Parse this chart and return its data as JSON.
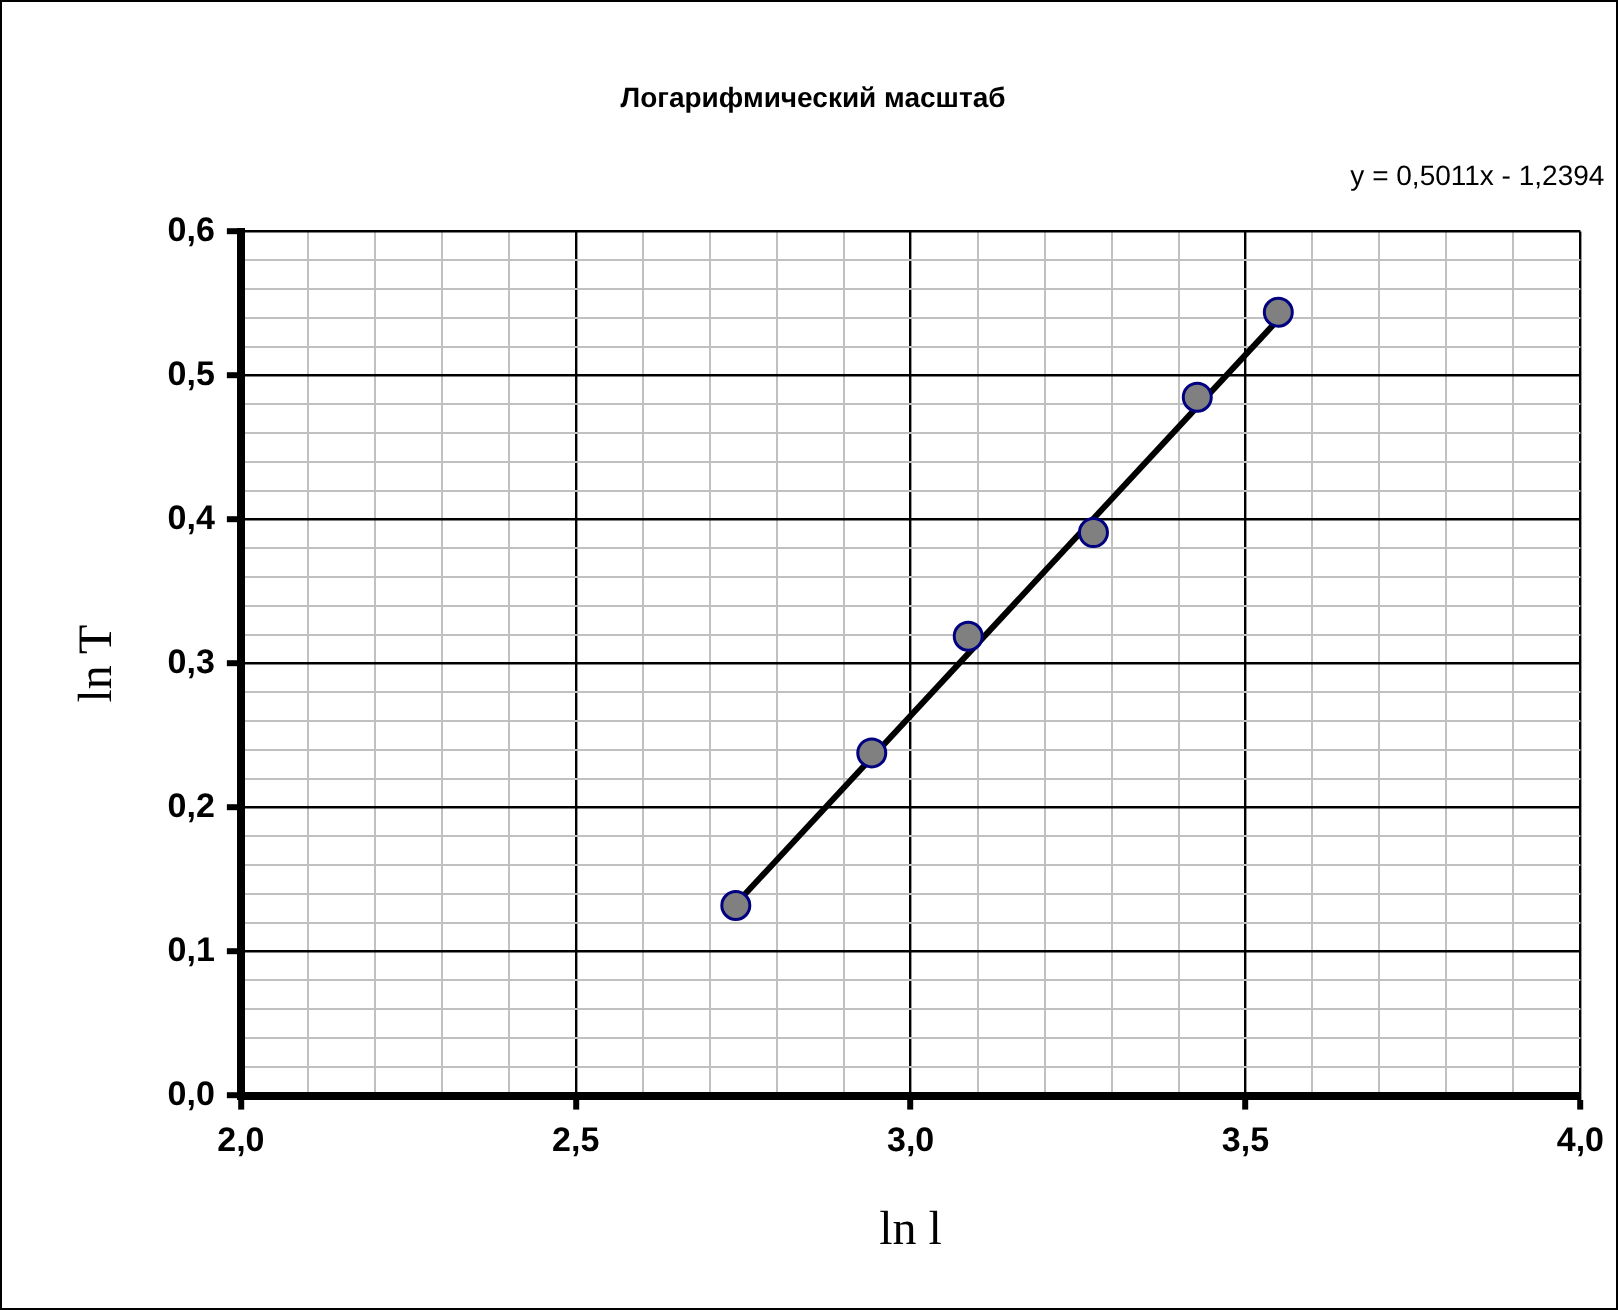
{
  "chart_data": {
    "type": "scatter",
    "title": "Логарифмический масштаб",
    "xlabel": "ln l",
    "ylabel": "ln T",
    "annotations": [
      "y = 0,5011x - 1,2394"
    ],
    "xlim": [
      2.0,
      4.0
    ],
    "ylim": [
      0.0,
      0.6
    ],
    "xticks": [
      {
        "value": 2.0,
        "label": "2,0"
      },
      {
        "value": 2.1,
        "label": null
      },
      {
        "value": 2.2,
        "label": null
      },
      {
        "value": 2.3,
        "label": null
      },
      {
        "value": 2.4,
        "label": null
      },
      {
        "value": 2.5,
        "label": "2,5"
      },
      {
        "value": 2.6,
        "label": null
      },
      {
        "value": 2.7,
        "label": null
      },
      {
        "value": 2.8,
        "label": null
      },
      {
        "value": 2.9,
        "label": null
      },
      {
        "value": 3.0,
        "label": "3,0"
      },
      {
        "value": 3.1,
        "label": null
      },
      {
        "value": 3.2,
        "label": null
      },
      {
        "value": 3.3,
        "label": null
      },
      {
        "value": 3.4,
        "label": null
      },
      {
        "value": 3.5,
        "label": "3,5"
      },
      {
        "value": 3.6,
        "label": null
      },
      {
        "value": 3.7,
        "label": null
      },
      {
        "value": 3.8,
        "label": null
      },
      {
        "value": 3.9,
        "label": null
      },
      {
        "value": 4.0,
        "label": "4,0"
      }
    ],
    "yticks": [
      {
        "value": 0.0,
        "label": "0,0"
      },
      {
        "value": 0.02,
        "label": null
      },
      {
        "value": 0.04,
        "label": null
      },
      {
        "value": 0.06,
        "label": null
      },
      {
        "value": 0.08,
        "label": null
      },
      {
        "value": 0.1,
        "label": "0,1"
      },
      {
        "value": 0.12,
        "label": null
      },
      {
        "value": 0.14,
        "label": null
      },
      {
        "value": 0.16,
        "label": null
      },
      {
        "value": 0.18,
        "label": null
      },
      {
        "value": 0.2,
        "label": "0,2"
      },
      {
        "value": 0.22,
        "label": null
      },
      {
        "value": 0.24,
        "label": null
      },
      {
        "value": 0.26,
        "label": null
      },
      {
        "value": 0.28,
        "label": null
      },
      {
        "value": 0.3,
        "label": "0,3"
      },
      {
        "value": 0.32,
        "label": null
      },
      {
        "value": 0.34,
        "label": null
      },
      {
        "value": 0.36,
        "label": null
      },
      {
        "value": 0.38,
        "label": null
      },
      {
        "value": 0.4,
        "label": "0,4"
      },
      {
        "value": 0.42,
        "label": null
      },
      {
        "value": 0.44,
        "label": null
      },
      {
        "value": 0.46,
        "label": null
      },
      {
        "value": 0.48,
        "label": null
      },
      {
        "value": 0.5,
        "label": "0,5"
      },
      {
        "value": 0.52,
        "label": null
      },
      {
        "value": 0.54,
        "label": null
      },
      {
        "value": 0.56,
        "label": null
      },
      {
        "value": 0.58,
        "label": null
      },
      {
        "value": 0.6,
        "label": "0,6"
      }
    ],
    "grid": true,
    "series": [
      {
        "marker": "circle",
        "color": "#808080",
        "x": [
          2.739,
          2.942,
          3.086,
          3.273,
          3.428,
          3.549
        ],
        "values": [
          0.132,
          0.238,
          0.319,
          0.391,
          0.485,
          0.544
        ]
      },
      {
        "type": "line",
        "marker": "none",
        "line_style": "solid",
        "color": "#000000",
        "x": [
          2.739,
          3.549
        ],
        "values": [
          0.133,
          0.539
        ]
      }
    ]
  }
}
